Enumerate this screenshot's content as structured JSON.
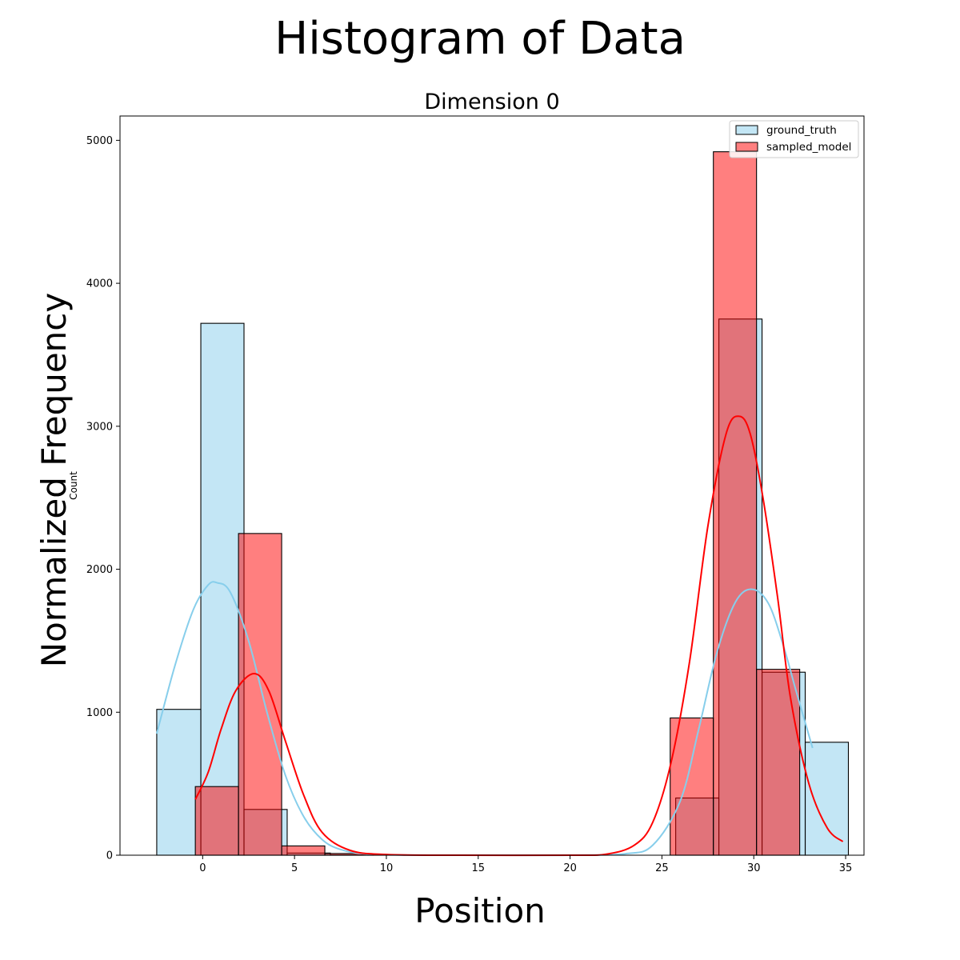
{
  "figure": {
    "title": "Histogram of Data",
    "xlabel": "Position",
    "ylabel": "Normalized Frequency"
  },
  "chart_data": {
    "type": "bar",
    "title": "Dimension 0",
    "xlabel": "",
    "ylabel": "Count",
    "xlim": [
      -4.5,
      36
    ],
    "ylim": [
      0,
      5170
    ],
    "x_ticks": [
      0,
      5,
      10,
      15,
      20,
      25,
      30,
      35
    ],
    "y_ticks": [
      0,
      1000,
      2000,
      3000,
      4000,
      5000
    ],
    "grid": false,
    "legend_position": "top-right",
    "series": [
      {
        "name": "ground_truth",
        "color": "#87ceeb",
        "bin_edges": [
          -2.5,
          -0.1,
          2.25,
          4.6,
          6.95,
          9.3,
          11.65,
          14.0,
          16.35,
          18.7,
          21.05,
          23.4,
          25.75,
          28.1,
          30.45,
          32.8,
          35.15
        ],
        "counts": [
          1020,
          3720,
          320,
          15,
          2,
          0,
          0,
          0,
          0,
          0,
          0,
          0,
          400,
          3750,
          1280,
          790
        ],
        "kde_x": [
          -2.5,
          -1.5,
          -0.5,
          0.3,
          0.8,
          1.5,
          2.5,
          3.5,
          4.5,
          5.5,
          6.5,
          7.5,
          9,
          12,
          16,
          20,
          23,
          24.5,
          26,
          27,
          28,
          29,
          29.9,
          30.8,
          31.6,
          32.3,
          33.2
        ],
        "kde_y": [
          850,
          1330,
          1720,
          1890,
          1905,
          1840,
          1500,
          1000,
          560,
          270,
          110,
          40,
          8,
          0,
          0,
          0,
          10,
          70,
          380,
          880,
          1420,
          1770,
          1860,
          1760,
          1470,
          1150,
          750
        ]
      },
      {
        "name": "sampled_model",
        "color": "#ff0000",
        "bin_edges": [
          -0.4,
          1.95,
          4.3,
          6.65,
          9.0,
          11.35,
          13.7,
          16.05,
          18.4,
          20.75,
          23.1,
          25.45,
          27.8,
          30.15,
          32.5,
          34.85
        ],
        "counts": [
          480,
          2250,
          65,
          12,
          2,
          0,
          0,
          0,
          0,
          0,
          0,
          960,
          4920,
          1300,
          0
        ],
        "kde_x": [
          -0.4,
          0.3,
          1.0,
          1.8,
          2.8,
          3.6,
          4.5,
          5.5,
          6.5,
          8,
          10,
          14,
          20,
          22,
          23.5,
          24.5,
          25.5,
          26.5,
          27.5,
          28.5,
          29.2,
          29.8,
          30.5,
          31.3,
          32,
          33,
          34,
          34.85
        ],
        "kde_y": [
          390,
          580,
          880,
          1150,
          1270,
          1150,
          800,
          420,
          160,
          35,
          5,
          0,
          0,
          8,
          70,
          230,
          650,
          1350,
          2300,
          2950,
          3070,
          2950,
          2500,
          1800,
          1100,
          500,
          190,
          95
        ]
      }
    ]
  }
}
